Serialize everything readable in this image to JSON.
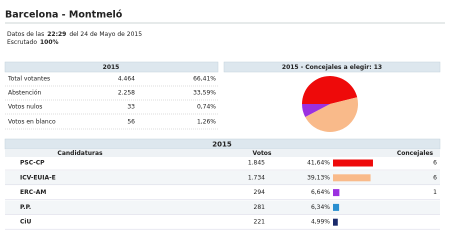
{
  "header": {
    "title": "Barcelona - Montmeló",
    "datos_prefix": "Datos de las",
    "time": "22:29",
    "datos_suffix": "del 24 de Mayo de 2015",
    "escrutado_label": "Escrutado",
    "escrutado": "100%"
  },
  "summary": {
    "title": "2015",
    "rows": [
      [
        "Total votantes",
        "4.464",
        "66,41%"
      ],
      [
        "Abstención",
        "2.258",
        "33,59%"
      ],
      [
        "Votos nulos",
        "33",
        "0,74%"
      ],
      [
        "Votos en blanco",
        "56",
        "1,26%"
      ]
    ]
  },
  "seats_panel": {
    "title": "2015 - Concejales a elegir: 13"
  },
  "results": {
    "title": "2015",
    "columns": [
      "Candidaturas",
      "Votos",
      "Concejales"
    ],
    "rows": [
      {
        "name": "PSC-CP",
        "votes": "1.845",
        "percent": 41.64,
        "percent_label": "41,64%",
        "color": "#ee0a0a",
        "seats": 6
      },
      {
        "name": "ICV-EUIA-E",
        "votes": "1.734",
        "percent": 39.13,
        "percent_label": "39,13%",
        "color": "#f9ba8a",
        "seats": 6
      },
      {
        "name": "ERC-AM",
        "votes": "294",
        "percent": 6.64,
        "percent_label": "6,64%",
        "color": "#9b30e0",
        "seats": 1
      },
      {
        "name": "P.P.",
        "votes": "281",
        "percent": 6.34,
        "percent_label": "6,34%",
        "color": "#2a8fd0"
      },
      {
        "name": "CiU",
        "votes": "221",
        "percent": 4.99,
        "percent_label": "4,99%",
        "color": "#1b2a6b"
      }
    ]
  }
}
